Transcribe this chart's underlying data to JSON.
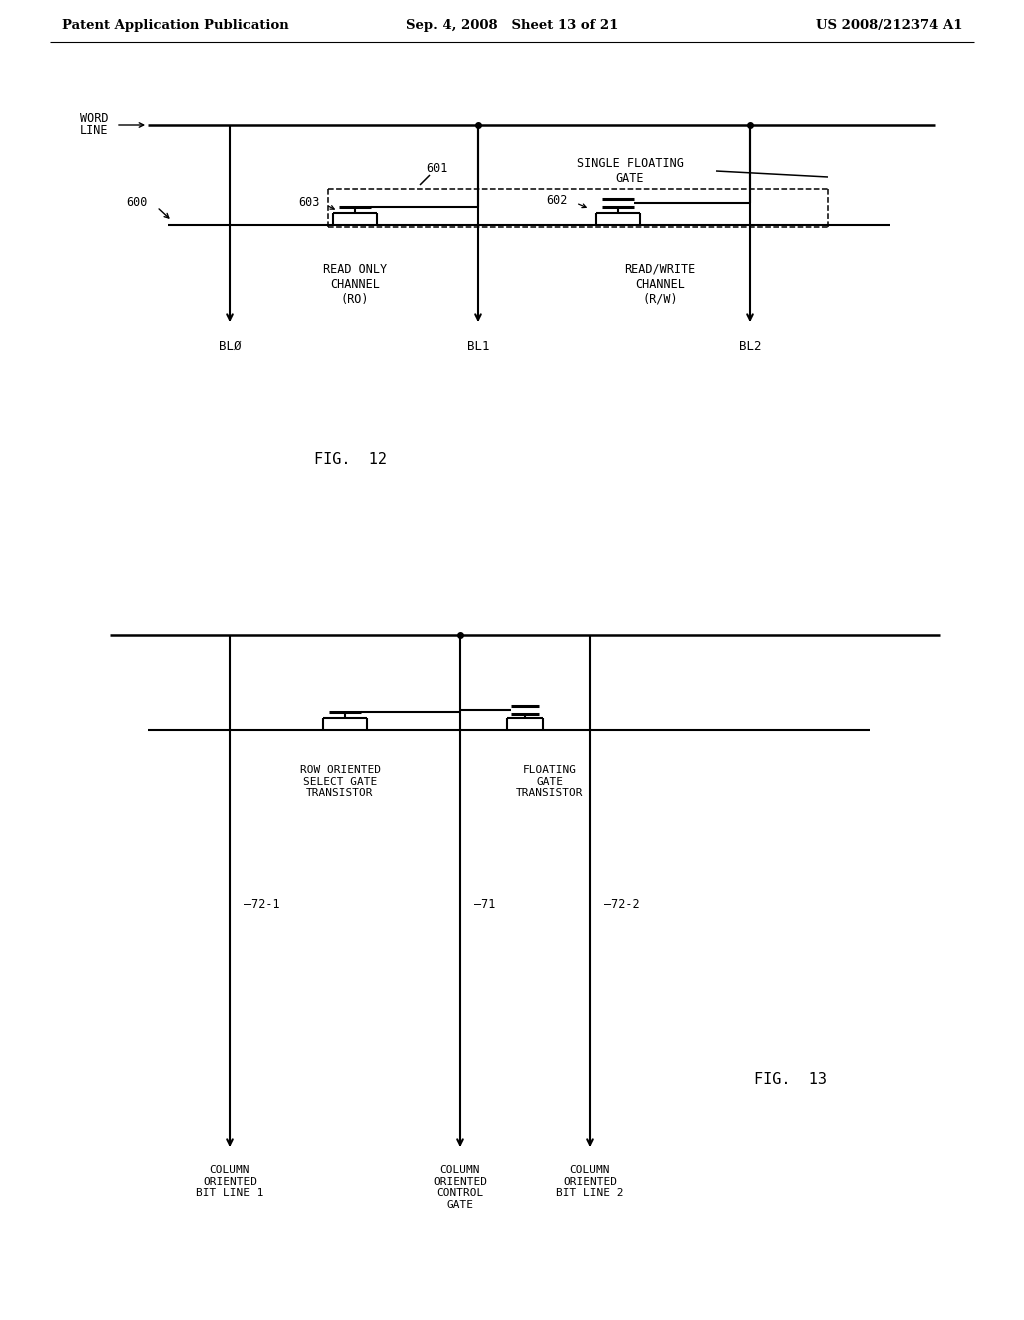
{
  "bg_color": "#ffffff",
  "text_color": "#000000",
  "header": {
    "left": "Patent Application Publication",
    "center": "Sep. 4, 2008   Sheet 13 of 21",
    "right": "US 2008/212374 A1"
  }
}
